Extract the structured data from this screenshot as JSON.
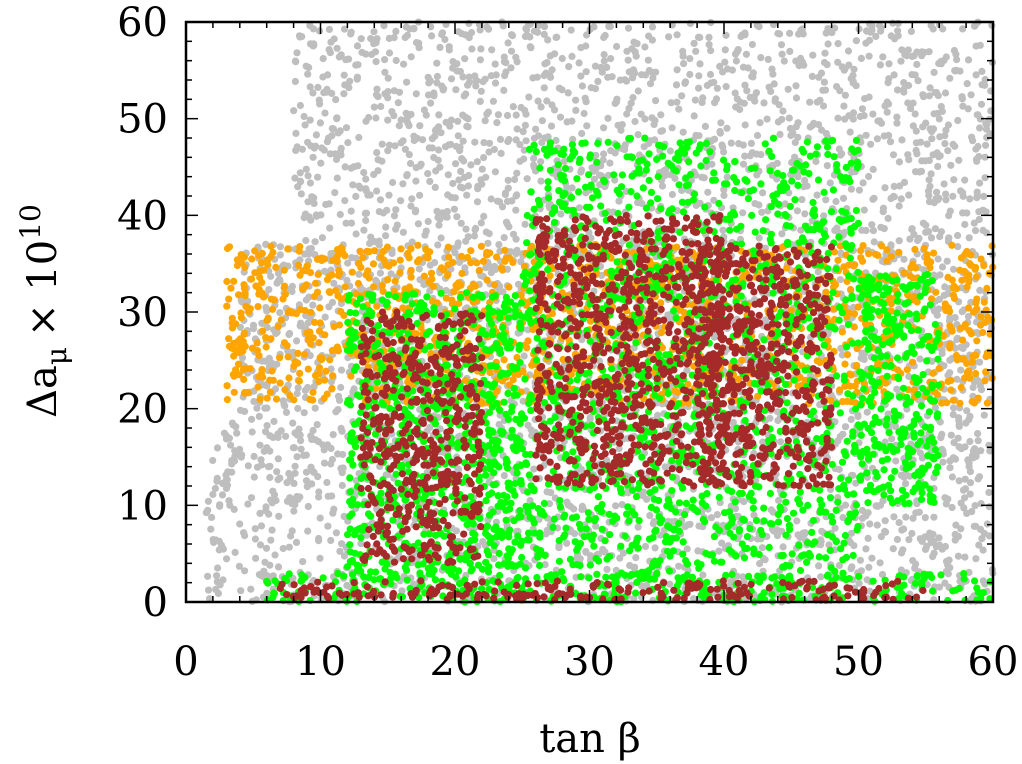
{
  "chart_data": {
    "type": "scatter",
    "title": "",
    "xlabel": "tan β",
    "ylabel_main": "Δa",
    "ylabel_sub": "μ",
    "ylabel_times": "× 10",
    "ylabel_exp": "10",
    "xlim": [
      0,
      60
    ],
    "ylim": [
      0,
      60
    ],
    "xticks": [
      "0",
      "10",
      "20",
      "30",
      "40",
      "50",
      "60"
    ],
    "yticks": [
      "0",
      "10",
      "20",
      "30",
      "40",
      "50",
      "60"
    ],
    "grid": false,
    "legend": "none",
    "series": [
      {
        "color": "#bebebe",
        "regions": [
          {
            "x": [
              1.5,
              60
            ],
            "y": [
              0,
              20
            ]
          },
          {
            "x": [
              4,
              60
            ],
            "y": [
              20,
              37
            ]
          },
          {
            "x": [
              8,
              60
            ],
            "y": [
              37,
              60
            ]
          }
        ]
      },
      {
        "color": "#ffa500",
        "regions": [
          {
            "x": [
              3,
              60
            ],
            "y": [
              20.5,
              37
            ]
          }
        ]
      },
      {
        "color": "#00ff00",
        "regions": [
          {
            "x": [
              6,
              60
            ],
            "y": [
              0,
              3
            ]
          },
          {
            "x": [
              12,
              25
            ],
            "y": [
              3,
              32
            ]
          },
          {
            "x": [
              25,
              50
            ],
            "y": [
              3,
              48
            ]
          },
          {
            "x": [
              50,
              56
            ],
            "y": [
              10,
              34
            ]
          }
        ]
      },
      {
        "color": "#a52a2a",
        "regions": [
          {
            "x": [
              7,
              55
            ],
            "y": [
              0.2,
              2.2
            ]
          },
          {
            "x": [
              13,
              22
            ],
            "y": [
              4,
              30
            ]
          },
          {
            "x": [
              26,
              40
            ],
            "y": [
              12,
              40
            ]
          },
          {
            "x": [
              38,
              48
            ],
            "y": [
              12,
              37
            ]
          }
        ]
      }
    ]
  }
}
